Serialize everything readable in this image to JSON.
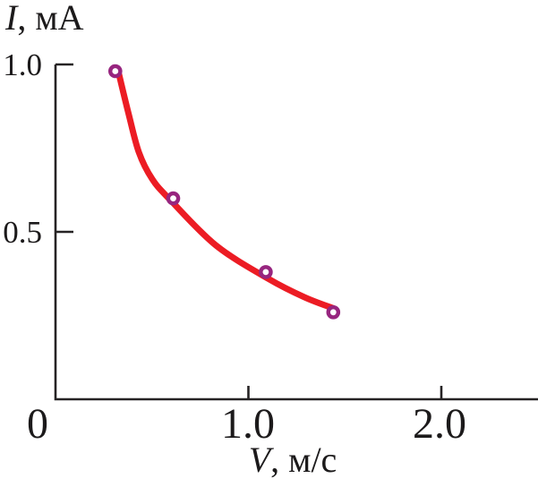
{
  "chart_data": {
    "type": "scatter",
    "title": "",
    "x_axis": {
      "title_variable": "V",
      "title_rest": ", м/с",
      "ticks": [
        {
          "value": 0,
          "label": "0"
        },
        {
          "value": 1.0,
          "label": "1.0"
        },
        {
          "value": 2.0,
          "label": "2.0"
        }
      ],
      "range": [
        0,
        2.5
      ]
    },
    "y_axis": {
      "title_variable": "I",
      "title_rest": ", мА",
      "ticks": [
        {
          "value": 1.0,
          "label": "1.0"
        },
        {
          "value": 0.5,
          "label": "0.5"
        }
      ],
      "range": [
        0,
        1.0
      ]
    },
    "grid": false,
    "legend": null,
    "points": [
      {
        "x": 0.31,
        "y": 0.98
      },
      {
        "x": 0.61,
        "y": 0.6
      },
      {
        "x": 1.09,
        "y": 0.38
      },
      {
        "x": 1.44,
        "y": 0.26
      }
    ],
    "fit_curve_points": [
      {
        "x": 0.329,
        "y": 0.971
      },
      {
        "x": 0.38,
        "y": 0.85
      },
      {
        "x": 0.432,
        "y": 0.738
      },
      {
        "x": 0.501,
        "y": 0.658
      },
      {
        "x": 0.594,
        "y": 0.596
      },
      {
        "x": 0.831,
        "y": 0.46
      },
      {
        "x": 1.1,
        "y": 0.361
      },
      {
        "x": 1.29,
        "y": 0.305
      },
      {
        "x": 1.448,
        "y": 0.27
      }
    ],
    "colors": {
      "curve": "#ec1c24",
      "marker_stroke": "#97257f",
      "marker_fill": "#ffffff",
      "axis": "#262324",
      "text": "#1c1a1b"
    }
  }
}
